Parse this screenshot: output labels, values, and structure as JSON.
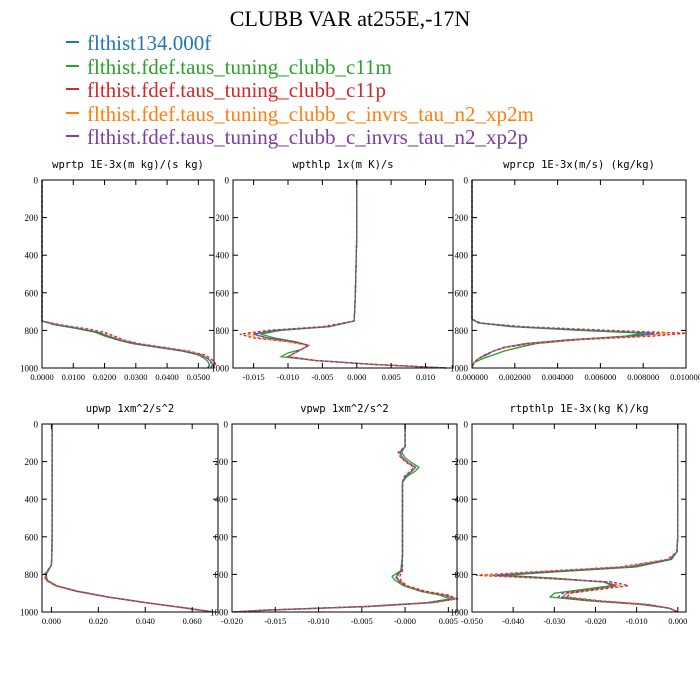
{
  "title": "CLUBB VAR at255E,-17N",
  "legend": [
    {
      "label": "flthist134.000f",
      "color": "#1f77b4"
    },
    {
      "label": "flthist.fdef.taus_tuning_clubb_c11m",
      "color": "#2ca02c"
    },
    {
      "label": "flthist.fdef.taus_tuning_clubb_c11p",
      "color": "#d62728"
    },
    {
      "label": "flthist.fdef.taus_tuning_clubb_c_invrs_tau_n2_xp2m",
      "color": "#ff7f0e"
    },
    {
      "label": "flthist.fdef.taus_tuning_clubb_c_invrs_tau_n2_xp2p",
      "color": "#7b3fa0"
    }
  ],
  "chart_data": [
    {
      "type": "line",
      "title": "wprtp  1E-3x(m kg)/(s kg)",
      "xlim": [
        0.0,
        0.055
      ],
      "ylim": [
        1000,
        0
      ],
      "x_ticks": [
        0.0,
        0.01,
        0.02,
        0.03,
        0.04,
        0.05
      ],
      "x_tick_labels": [
        "0.0000",
        "0.0100",
        "0.0200",
        "0.0300",
        "0.0400",
        "0.0500"
      ],
      "y_ticks": [
        0,
        200,
        400,
        600,
        800,
        1000
      ],
      "y_tick_labels": [
        "0",
        "200",
        "400",
        "600",
        "800",
        "1000"
      ],
      "y": [
        0,
        700,
        750,
        770,
        790,
        810,
        830,
        850,
        870,
        890,
        910,
        930,
        950,
        965,
        980,
        1000
      ],
      "series": [
        {
          "values": [
            0,
            0,
            0,
            0.005,
            0.012,
            0.018,
            0.021,
            0.025,
            0.03,
            0.038,
            0.046,
            0.051,
            0.053,
            0.054,
            0.0545,
            0.054
          ]
        },
        {
          "values": [
            0,
            0,
            0,
            0.004,
            0.011,
            0.017,
            0.02,
            0.024,
            0.029,
            0.037,
            0.045,
            0.05,
            0.052,
            0.053,
            0.0535,
            0.053
          ]
        },
        {
          "values": [
            0,
            0,
            0,
            0.006,
            0.014,
            0.02,
            0.023,
            0.026,
            0.031,
            0.039,
            0.047,
            0.052,
            0.054,
            0.055,
            0.0555,
            0.055
          ]
        },
        {
          "values": [
            0,
            0,
            0,
            0.005,
            0.013,
            0.019,
            0.022,
            0.025,
            0.03,
            0.038,
            0.046,
            0.051,
            0.053,
            0.054,
            0.055,
            0.054
          ]
        },
        {
          "values": [
            0,
            0,
            0,
            0.004,
            0.012,
            0.018,
            0.021,
            0.024,
            0.029,
            0.037,
            0.045,
            0.05,
            0.053,
            0.054,
            0.054,
            0.053
          ]
        }
      ]
    },
    {
      "type": "line",
      "title": "wpthlp  1x(m K)/s",
      "xlim": [
        -0.018,
        0.014
      ],
      "ylim": [
        1000,
        0
      ],
      "x_ticks": [
        -0.015,
        -0.01,
        -0.005,
        0.0,
        0.005,
        0.01
      ],
      "x_tick_labels": [
        "-0.015",
        "-0.010",
        "-0.005",
        "0.000",
        "0.005",
        "0.010"
      ],
      "y_ticks": [
        0,
        200,
        400,
        600,
        800,
        1000
      ],
      "y_tick_labels": [
        "0",
        "200",
        "400",
        "600",
        "800",
        "1000"
      ],
      "y": [
        0,
        300,
        600,
        700,
        750,
        780,
        800,
        820,
        840,
        860,
        880,
        900,
        920,
        940,
        960,
        980,
        1000
      ],
      "series": [
        {
          "values": [
            0.0,
            0.0,
            -0.0002,
            -0.0003,
            -0.0004,
            -0.004,
            -0.012,
            -0.015,
            -0.013,
            -0.009,
            -0.007,
            -0.008,
            -0.009,
            -0.01,
            -0.006,
            0.002,
            0.013
          ]
        },
        {
          "values": [
            0.0,
            0.0,
            -0.0002,
            -0.0003,
            -0.0004,
            -0.004,
            -0.011,
            -0.014,
            -0.012,
            -0.009,
            -0.007,
            -0.008,
            -0.01,
            -0.011,
            -0.006,
            0.002,
            0.013
          ]
        },
        {
          "values": [
            0.0,
            0.0,
            -0.0002,
            -0.0003,
            -0.0004,
            -0.005,
            -0.013,
            -0.017,
            -0.015,
            -0.01,
            -0.007,
            -0.008,
            -0.009,
            -0.01,
            -0.006,
            0.002,
            0.013
          ]
        },
        {
          "values": [
            0.0,
            0.0,
            -0.0002,
            -0.0003,
            -0.0004,
            -0.004,
            -0.012,
            -0.016,
            -0.014,
            -0.01,
            -0.007,
            -0.008,
            -0.009,
            -0.01,
            -0.006,
            0.002,
            0.013
          ]
        },
        {
          "values": [
            0.0,
            0.0,
            -0.0002,
            -0.0003,
            -0.0004,
            -0.004,
            -0.012,
            -0.015,
            -0.013,
            -0.009,
            -0.007,
            -0.008,
            -0.009,
            -0.01,
            -0.006,
            0.002,
            0.013
          ]
        }
      ]
    },
    {
      "type": "line",
      "title": "wprcp  1E-3x(m/s) (kg/kg)",
      "xlim": [
        0.0,
        0.01
      ],
      "ylim": [
        1000,
        0
      ],
      "x_ticks": [
        0.0,
        0.002,
        0.004,
        0.006,
        0.008,
        0.01
      ],
      "x_tick_labels": [
        "0.000000",
        "0.002000",
        "0.004000",
        "0.006000",
        "0.008000",
        "0.010000"
      ],
      "y_ticks": [
        0,
        200,
        400,
        600,
        800,
        1000
      ],
      "y_tick_labels": [
        "0",
        "200",
        "400",
        "600",
        "800",
        "1000"
      ],
      "y": [
        0,
        740,
        760,
        780,
        800,
        815,
        830,
        850,
        870,
        890,
        910,
        930,
        950,
        970,
        1000
      ],
      "series": [
        {
          "values": [
            0,
            0,
            0.0003,
            0.002,
            0.0055,
            0.0085,
            0.0075,
            0.0045,
            0.0025,
            0.0015,
            0.001,
            0.0007,
            0.0003,
            0.0001,
            0
          ]
        },
        {
          "values": [
            0,
            0,
            0.0003,
            0.0018,
            0.005,
            0.008,
            0.0072,
            0.0048,
            0.003,
            0.0022,
            0.0015,
            0.001,
            0.0005,
            0.0001,
            0
          ]
        },
        {
          "values": [
            0,
            0,
            0.0004,
            0.0024,
            0.0065,
            0.01,
            0.0085,
            0.005,
            0.0028,
            0.0016,
            0.001,
            0.0006,
            0.0003,
            0.0001,
            0
          ]
        },
        {
          "values": [
            0,
            0,
            0.0003,
            0.0022,
            0.006,
            0.0092,
            0.008,
            0.0048,
            0.0027,
            0.0016,
            0.001,
            0.0006,
            0.0003,
            0.0001,
            0
          ]
        },
        {
          "values": [
            0,
            0,
            0.0003,
            0.002,
            0.0057,
            0.0088,
            0.0077,
            0.0046,
            0.0026,
            0.0015,
            0.001,
            0.0006,
            0.0003,
            0.0001,
            0
          ]
        }
      ]
    },
    {
      "type": "line",
      "title": "upwp  1xm^2/s^2",
      "xlim": [
        -0.004,
        0.071
      ],
      "ylim": [
        1000,
        0
      ],
      "x_ticks": [
        0.0,
        0.02,
        0.04,
        0.06
      ],
      "x_tick_labels": [
        "0.000",
        "0.020",
        "0.040",
        "0.060"
      ],
      "y_ticks": [
        0,
        200,
        400,
        600,
        800,
        1000
      ],
      "y_tick_labels": [
        "0",
        "200",
        "400",
        "600",
        "800",
        "1000"
      ],
      "y": [
        0,
        200,
        400,
        600,
        700,
        750,
        780,
        800,
        830,
        860,
        890,
        920,
        950,
        980,
        1000
      ],
      "series": [
        {
          "values": [
            0.0003,
            0.0003,
            0.0003,
            0.0003,
            0.0002,
            0.0,
            -0.0015,
            -0.0025,
            -0.002,
            0.002,
            0.011,
            0.024,
            0.04,
            0.058,
            0.069
          ]
        },
        {
          "values": [
            0.0003,
            0.0003,
            0.0003,
            0.0003,
            0.0002,
            0.0,
            -0.0013,
            -0.0022,
            -0.0018,
            0.0022,
            0.0115,
            0.0245,
            0.0405,
            0.0585,
            0.069
          ]
        },
        {
          "values": [
            0.0003,
            0.0003,
            0.0003,
            0.0003,
            0.0002,
            0.0,
            -0.0018,
            -0.003,
            -0.0025,
            0.0015,
            0.0105,
            0.0235,
            0.0395,
            0.0575,
            0.068
          ]
        },
        {
          "values": [
            0.0003,
            0.0003,
            0.0003,
            0.0003,
            0.0002,
            0.0,
            -0.0016,
            -0.0027,
            -0.0022,
            0.0018,
            0.011,
            0.024,
            0.04,
            0.058,
            0.0685
          ]
        },
        {
          "values": [
            0.0003,
            0.0003,
            0.0003,
            0.0003,
            0.0002,
            0.0,
            -0.0014,
            -0.0024,
            -0.002,
            0.002,
            0.011,
            0.024,
            0.04,
            0.058,
            0.069
          ]
        }
      ]
    },
    {
      "type": "line",
      "title": "vpwp  1xm^2/s^2",
      "xlim": [
        -0.02,
        0.006
      ],
      "ylim": [
        1000,
        0
      ],
      "x_ticks": [
        -0.02,
        -0.015,
        -0.01,
        -0.005,
        0.0,
        0.005
      ],
      "x_tick_labels": [
        "-0.020",
        "-0.015",
        "-0.010",
        "-0.005",
        "-0.000",
        "0.005"
      ],
      "y_ticks": [
        0,
        200,
        400,
        600,
        800,
        1000
      ],
      "y_tick_labels": [
        "0",
        "200",
        "400",
        "600",
        "800",
        "1000"
      ],
      "y": [
        0,
        120,
        150,
        180,
        210,
        230,
        250,
        280,
        310,
        350,
        500,
        700,
        780,
        810,
        830,
        860,
        890,
        910,
        930,
        950,
        970,
        990,
        1000
      ],
      "series": [
        {
          "values": [
            0.0,
            0.0,
            -0.0006,
            -0.0003,
            0.0005,
            0.0012,
            0.0008,
            0.0,
            -0.0003,
            -0.0003,
            -0.0003,
            -0.0003,
            -0.0004,
            -0.001,
            -0.0008,
            0.0,
            0.002,
            0.0045,
            0.0058,
            0.003,
            -0.004,
            -0.016,
            -0.02
          ]
        },
        {
          "values": [
            0.0,
            0.0,
            -0.0004,
            0.0,
            0.0009,
            0.0016,
            0.0012,
            0.0002,
            -0.0003,
            -0.0003,
            -0.0003,
            -0.0003,
            -0.0005,
            -0.0015,
            -0.0012,
            -0.0002,
            0.0018,
            0.004,
            0.0052,
            0.0025,
            -0.0045,
            -0.0165,
            -0.0198
          ]
        },
        {
          "values": [
            0.0,
            0.0,
            -0.0008,
            -0.0005,
            0.0003,
            0.001,
            0.0006,
            -0.0001,
            -0.0003,
            -0.0003,
            -0.0003,
            -0.0003,
            -0.0003,
            -0.0006,
            -0.0005,
            0.0002,
            0.0024,
            0.005,
            0.006,
            0.0034,
            -0.0035,
            -0.0155,
            -0.0196
          ]
        },
        {
          "values": [
            0.0,
            0.0,
            -0.0007,
            -0.0004,
            0.0004,
            0.0011,
            0.0007,
            0.0,
            -0.0003,
            -0.0003,
            -0.0003,
            -0.0003,
            -0.0004,
            -0.0009,
            -0.0007,
            0.0001,
            0.0021,
            0.0047,
            0.0059,
            0.0031,
            -0.004,
            -0.016,
            -0.0197
          ]
        },
        {
          "values": [
            0.0,
            0.0,
            -0.0006,
            -0.0003,
            0.0005,
            0.0012,
            0.0008,
            0.0,
            -0.0003,
            -0.0003,
            -0.0003,
            -0.0003,
            -0.0004,
            -0.0011,
            -0.0009,
            0.0,
            0.002,
            0.0046,
            0.0058,
            0.003,
            -0.004,
            -0.016,
            -0.0199
          ]
        }
      ]
    },
    {
      "type": "line",
      "title": "rtpthlp  1E-3x(kg K)/kg",
      "xlim": [
        -0.05,
        0.002
      ],
      "ylim": [
        1000,
        0
      ],
      "x_ticks": [
        -0.05,
        -0.04,
        -0.03,
        -0.02,
        -0.01,
        0.0
      ],
      "x_tick_labels": [
        "-0.050",
        "-0.040",
        "-0.030",
        "-0.020",
        "-0.010",
        "0.000"
      ],
      "y_ticks": [
        0,
        200,
        400,
        600,
        800,
        1000
      ],
      "y_tick_labels": [
        "0",
        "200",
        "400",
        "600",
        "800",
        "1000"
      ],
      "y": [
        0,
        300,
        600,
        680,
        720,
        760,
        790,
        805,
        820,
        840,
        860,
        880,
        900,
        920,
        940,
        960,
        980,
        1000
      ],
      "series": [
        {
          "values": [
            0.0,
            0.0,
            0.0,
            -0.0002,
            -0.002,
            -0.012,
            -0.035,
            -0.045,
            -0.032,
            -0.018,
            -0.015,
            -0.021,
            -0.027,
            -0.028,
            -0.02,
            -0.008,
            -0.002,
            0.0
          ]
        },
        {
          "values": [
            0.0,
            0.0,
            0.0,
            -0.0002,
            -0.0015,
            -0.01,
            -0.032,
            -0.042,
            -0.03,
            -0.018,
            -0.016,
            -0.023,
            -0.03,
            -0.031,
            -0.022,
            -0.009,
            -0.002,
            0.0
          ]
        },
        {
          "values": [
            0.0,
            0.0,
            0.0,
            -0.0003,
            -0.0025,
            -0.014,
            -0.038,
            -0.049,
            -0.034,
            -0.016,
            -0.012,
            -0.019,
            -0.026,
            -0.027,
            -0.019,
            -0.007,
            -0.002,
            0.0
          ]
        },
        {
          "values": [
            0.0,
            0.0,
            0.0,
            -0.0002,
            -0.0022,
            -0.013,
            -0.036,
            -0.047,
            -0.033,
            -0.017,
            -0.014,
            -0.02,
            -0.027,
            -0.028,
            -0.02,
            -0.008,
            -0.002,
            0.0
          ]
        },
        {
          "values": [
            0.0,
            0.0,
            0.0,
            -0.0002,
            -0.0018,
            -0.011,
            -0.034,
            -0.044,
            -0.031,
            -0.018,
            -0.015,
            -0.021,
            -0.028,
            -0.029,
            -0.021,
            -0.008,
            -0.002,
            0.0
          ]
        }
      ]
    }
  ]
}
